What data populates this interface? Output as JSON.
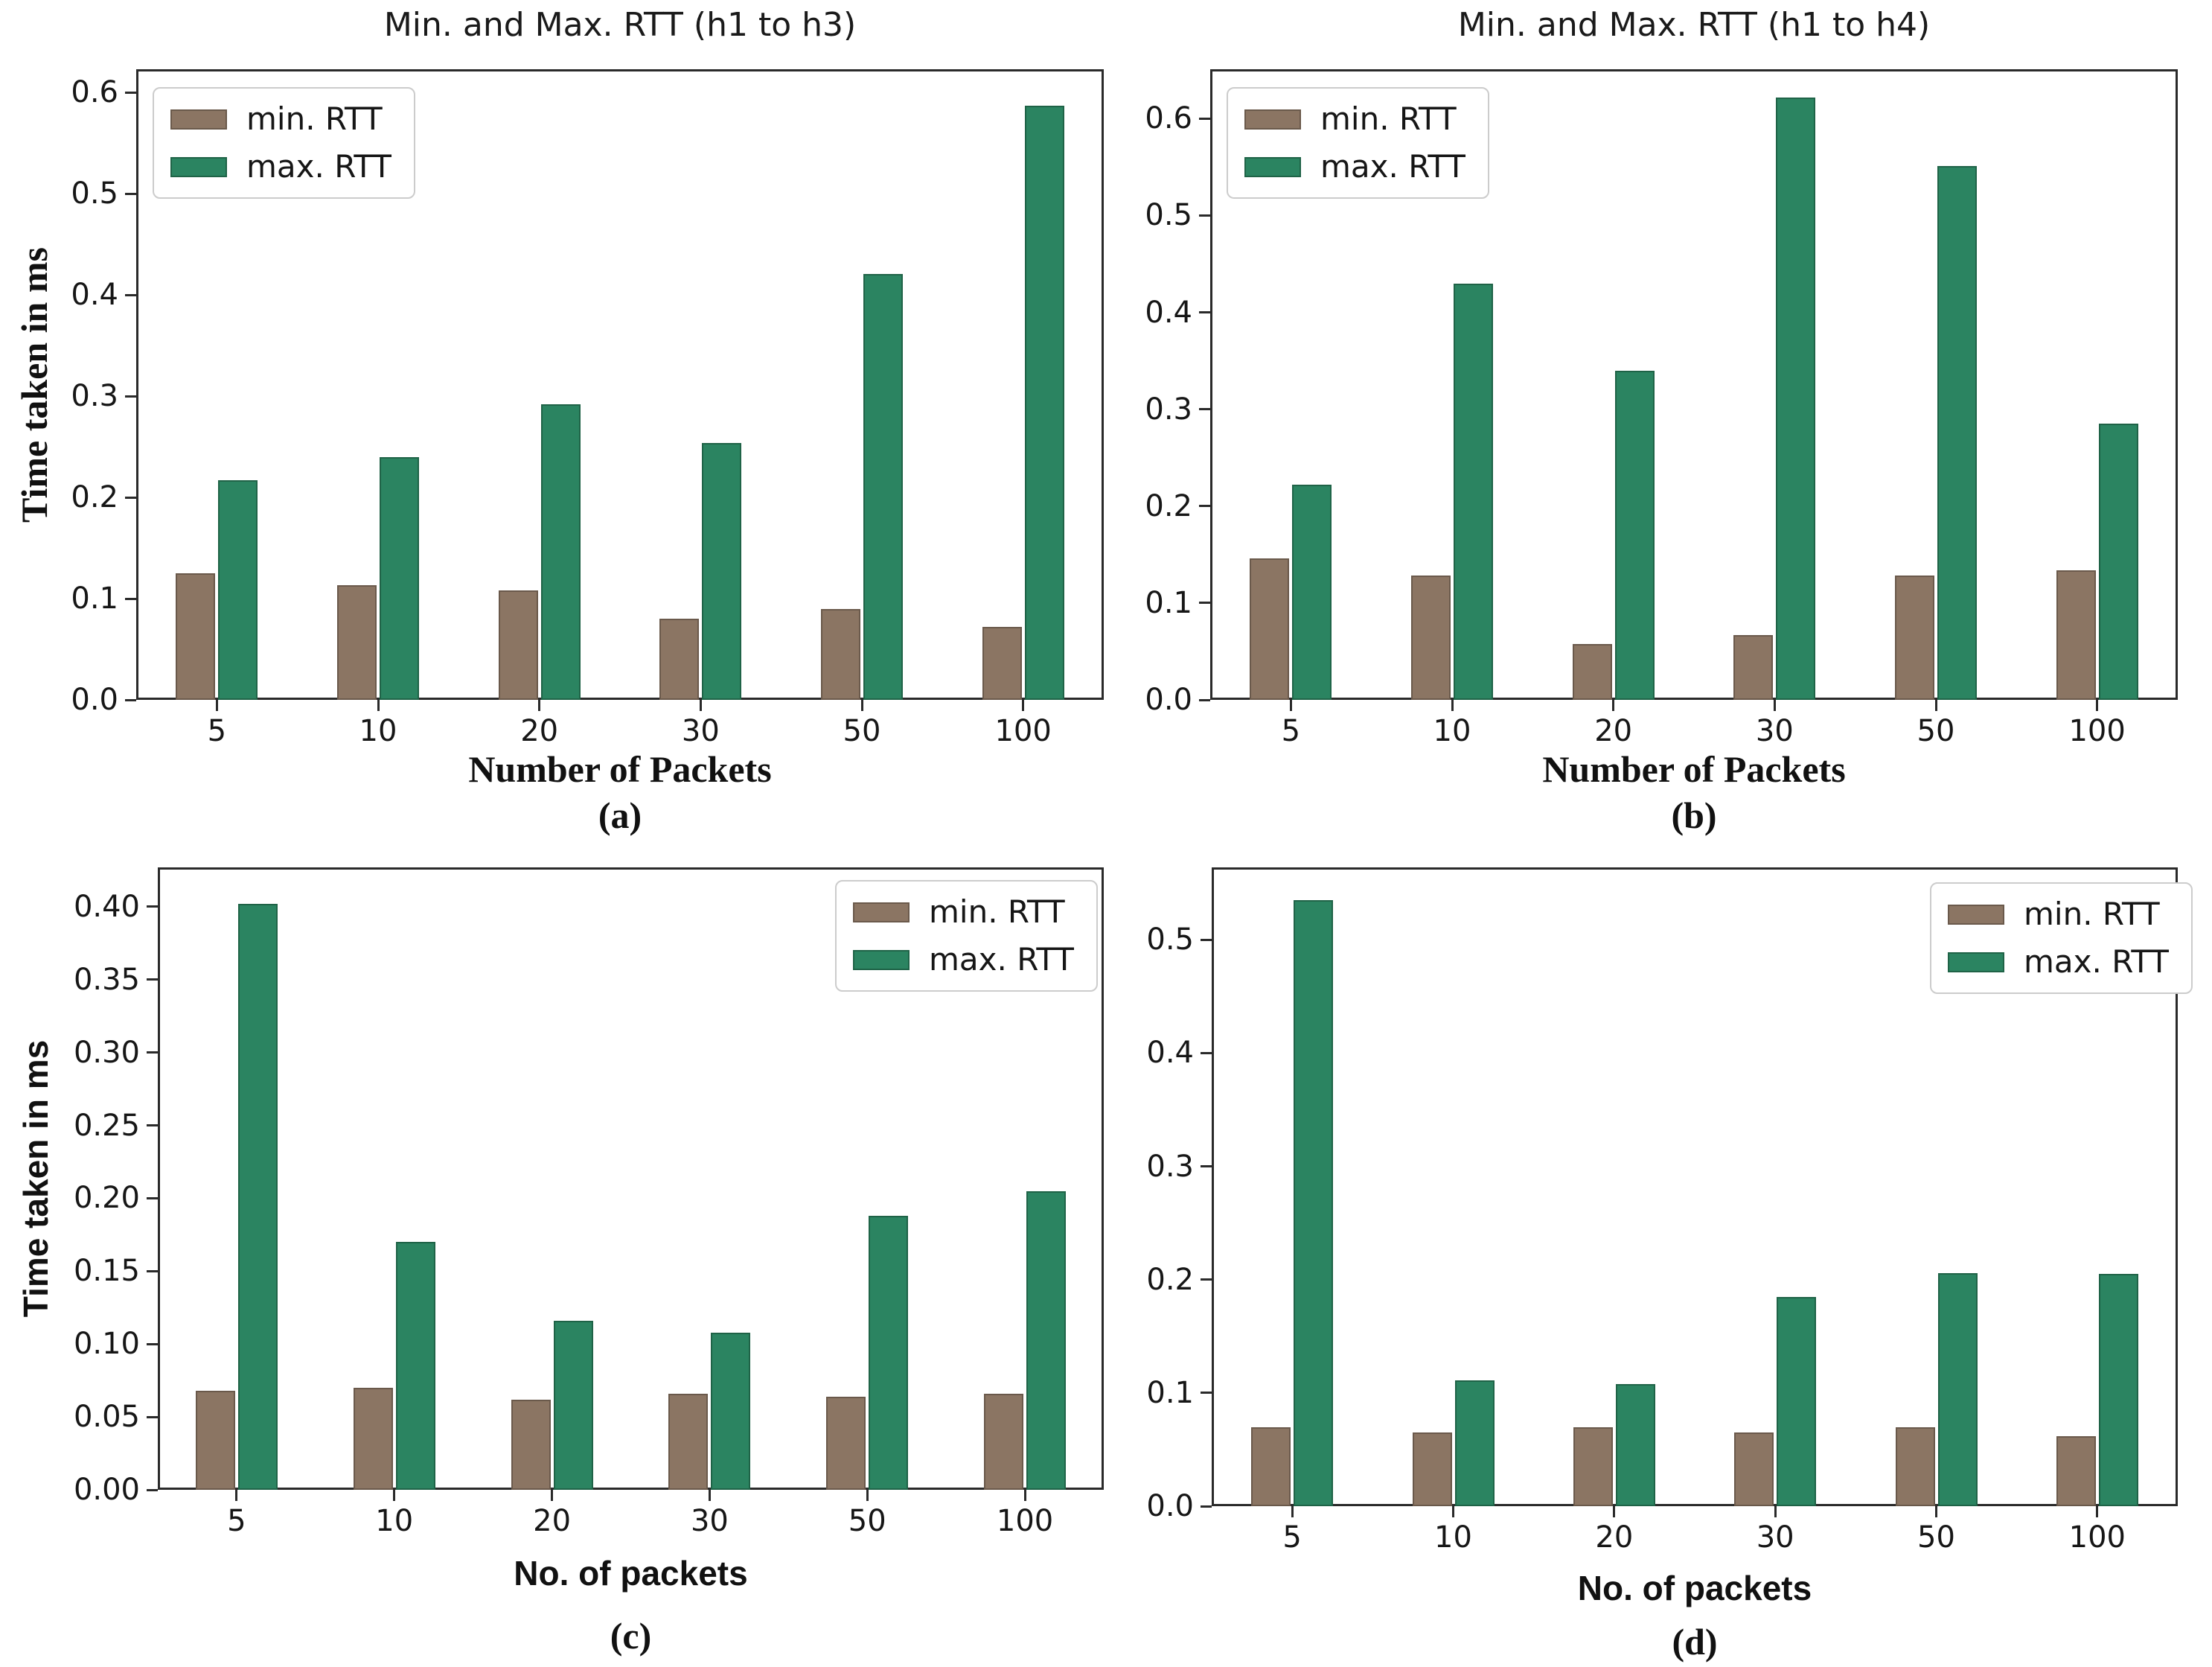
{
  "figure": {
    "background": "#ffffff",
    "series_labels": [
      "min. RTT",
      "max. RTT"
    ]
  },
  "colors": {
    "min_rtt_fill": "#8b7563",
    "min_rtt_edge": "#6a594b",
    "max_rtt_fill": "#2b8461",
    "max_rtt_edge": "#1f6347",
    "axis": "#2a2a2a",
    "text": "#161616",
    "legend_border": "#cccccc"
  },
  "chart_data": [
    {
      "type": "bar",
      "panel": "a",
      "caption": "(a)",
      "title": "Min. and Max. RTT (h1 to h3)",
      "xlabel": "Number of Packets",
      "ylabel": "Time taken in ms",
      "categories": [
        "5",
        "10",
        "20",
        "30",
        "50",
        "100"
      ],
      "series": [
        {
          "name": "min. RTT",
          "values": [
            0.125,
            0.113,
            0.108,
            0.08,
            0.09,
            0.072
          ]
        },
        {
          "name": "max. RTT",
          "values": [
            0.217,
            0.24,
            0.292,
            0.254,
            0.421,
            0.587
          ]
        }
      ],
      "ylim": [
        0,
        0.623
      ],
      "yticks": [
        0,
        0.1,
        0.2,
        0.3,
        0.4,
        0.5,
        0.6
      ],
      "ytick_labels": [
        "0.0",
        "0.1",
        "0.2",
        "0.3",
        "0.4",
        "0.5",
        "0.6"
      ],
      "legend_position": "top-left",
      "grid": false
    },
    {
      "type": "bar",
      "panel": "b",
      "caption": "(b)",
      "title": "Min. and Max. RTT (h1 to h4)",
      "xlabel": "Number of Packets",
      "ylabel": "",
      "categories": [
        "5",
        "10",
        "20",
        "30",
        "50",
        "100"
      ],
      "series": [
        {
          "name": "min. RTT",
          "values": [
            0.146,
            0.128,
            0.058,
            0.067,
            0.128,
            0.134
          ]
        },
        {
          "name": "max. RTT",
          "values": [
            0.222,
            0.43,
            0.34,
            0.622,
            0.551,
            0.285
          ]
        }
      ],
      "ylim": [
        0,
        0.651
      ],
      "yticks": [
        0,
        0.1,
        0.2,
        0.3,
        0.4,
        0.5,
        0.6
      ],
      "ytick_labels": [
        "0.0",
        "0.1",
        "0.2",
        "0.3",
        "0.4",
        "0.5",
        "0.6"
      ],
      "legend_position": "top-left",
      "grid": false
    },
    {
      "type": "bar",
      "panel": "c",
      "caption": "(c)",
      "title": "",
      "xlabel": "No. of packets",
      "ylabel": "Time taken in ms",
      "categories": [
        "5",
        "10",
        "20",
        "30",
        "50",
        "100"
      ],
      "series": [
        {
          "name": "min. RTT",
          "values": [
            0.068,
            0.07,
            0.062,
            0.066,
            0.064,
            0.066
          ]
        },
        {
          "name": "max. RTT",
          "values": [
            0.402,
            0.17,
            0.116,
            0.108,
            0.188,
            0.205
          ]
        }
      ],
      "ylim": [
        0,
        0.427
      ],
      "yticks": [
        0,
        0.05,
        0.1,
        0.15,
        0.2,
        0.25,
        0.3,
        0.35,
        0.4
      ],
      "ytick_labels": [
        "0.00",
        "0.05",
        "0.10",
        "0.15",
        "0.20",
        "0.25",
        "0.30",
        "0.35",
        "0.40"
      ],
      "legend_position": "top-right",
      "grid": false
    },
    {
      "type": "bar",
      "panel": "d",
      "caption": "(d)",
      "title": "",
      "xlabel": "No. of packets",
      "ylabel": "",
      "categories": [
        "5",
        "10",
        "20",
        "30",
        "50",
        "100"
      ],
      "series": [
        {
          "name": "min. RTT",
          "values": [
            0.07,
            0.065,
            0.07,
            0.065,
            0.07,
            0.062
          ]
        },
        {
          "name": "max. RTT",
          "values": [
            0.535,
            0.111,
            0.108,
            0.185,
            0.206,
            0.205
          ]
        }
      ],
      "ylim": [
        0,
        0.564
      ],
      "yticks": [
        0,
        0.1,
        0.2,
        0.3,
        0.4,
        0.5
      ],
      "ytick_labels": [
        "0.0",
        "0.1",
        "0.2",
        "0.3",
        "0.4",
        "0.5"
      ],
      "legend_position": "top-right",
      "grid": false
    }
  ]
}
